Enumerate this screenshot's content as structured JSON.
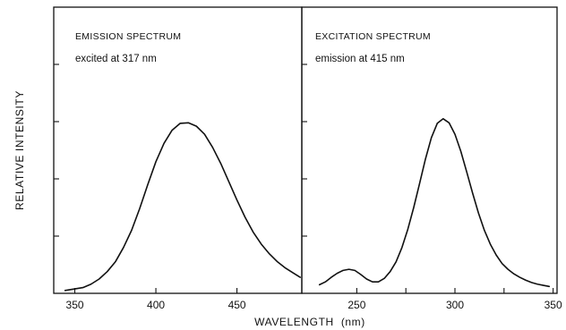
{
  "chart_data": [
    {
      "type": "line",
      "title": "EMISSION SPECTRUM",
      "subtitle": "excited at 317 nm",
      "xlim": [
        337,
        490
      ],
      "ylim": [
        0,
        5
      ],
      "x_ticks": [
        350,
        400,
        450
      ],
      "x_tick_labels": [
        "350",
        "400",
        "450"
      ],
      "y_ticks": [
        1,
        2,
        3,
        4
      ],
      "series": [
        {
          "x": [
            344,
            355,
            360,
            365,
            370,
            375,
            380,
            385,
            390,
            395,
            400,
            405,
            410,
            415,
            420,
            425,
            430,
            435,
            440,
            445,
            450,
            455,
            460,
            465,
            470,
            475,
            480,
            485,
            489
          ],
          "y": [
            0.05,
            0.1,
            0.16,
            0.25,
            0.38,
            0.55,
            0.8,
            1.1,
            1.48,
            1.9,
            2.3,
            2.62,
            2.85,
            2.97,
            2.98,
            2.92,
            2.78,
            2.55,
            2.27,
            1.95,
            1.63,
            1.33,
            1.07,
            0.86,
            0.69,
            0.55,
            0.44,
            0.35,
            0.28
          ]
        }
      ]
    },
    {
      "type": "line",
      "title": "EXCITATION SPECTRUM",
      "subtitle": "emission at 415 nm",
      "xlim": [
        222,
        352
      ],
      "ylim": [
        0,
        5
      ],
      "x_ticks": [
        250,
        275,
        300,
        325,
        350
      ],
      "x_tick_labels": [
        "250",
        "300",
        "350"
      ],
      "x_tick_label_values": [
        250,
        300,
        350
      ],
      "y_ticks": [
        1,
        2,
        3,
        4
      ],
      "series": [
        {
          "x": [
            231,
            234,
            237,
            240,
            243,
            246,
            249,
            252,
            255,
            258,
            261,
            264,
            267,
            270,
            273,
            276,
            279,
            282,
            285,
            288,
            291,
            294,
            297,
            300,
            303,
            306,
            309,
            312,
            315,
            318,
            321,
            324,
            327,
            330,
            333,
            336,
            339,
            342,
            345,
            348
          ],
          "y": [
            0.15,
            0.2,
            0.28,
            0.35,
            0.4,
            0.42,
            0.4,
            0.33,
            0.25,
            0.2,
            0.2,
            0.26,
            0.38,
            0.55,
            0.8,
            1.12,
            1.5,
            1.92,
            2.35,
            2.72,
            2.97,
            3.05,
            2.98,
            2.78,
            2.48,
            2.12,
            1.75,
            1.4,
            1.1,
            0.86,
            0.67,
            0.52,
            0.42,
            0.34,
            0.28,
            0.23,
            0.19,
            0.16,
            0.14,
            0.12
          ]
        }
      ]
    }
  ],
  "axis": {
    "ylabel": "RELATIVE INTENSITY",
    "xlabel": "WAVELENGTH",
    "xlabel_unit": "(nm)"
  }
}
